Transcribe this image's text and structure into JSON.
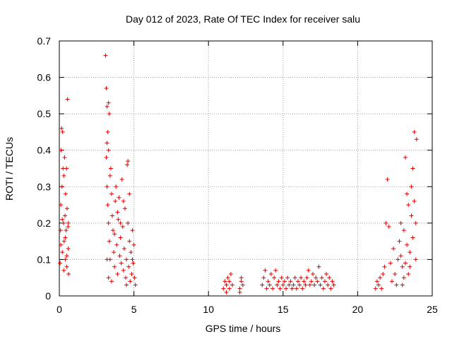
{
  "chart_data": {
    "type": "scatter",
    "title": "Day 012 of 2023, Rate Of TEC Index for receiver salu",
    "xlabel": "GPS time / hours",
    "ylabel": "ROTI / TECUs",
    "xlim": [
      0,
      25
    ],
    "ylim": [
      0,
      0.7
    ],
    "xticks": [
      "0",
      "5",
      "10",
      "15",
      "20",
      "25"
    ],
    "yticks": [
      "0",
      "0.1",
      "0.2",
      "0.3",
      "0.4",
      "0.5",
      "0.6",
      "0.7"
    ],
    "grid": true,
    "marker": "+",
    "color": "#e00000",
    "series": [
      {
        "points": [
          [
            0.05,
            0.09
          ],
          [
            0.08,
            0.18
          ],
          [
            0.1,
            0.25
          ],
          [
            0.12,
            0.4
          ],
          [
            0.15,
            0.46
          ],
          [
            0.18,
            0.3
          ],
          [
            0.2,
            0.12
          ],
          [
            0.22,
            0.45
          ],
          [
            0.25,
            0.35
          ],
          [
            0.28,
            0.2
          ],
          [
            0.3,
            0.07
          ],
          [
            0.32,
            0.15
          ],
          [
            0.35,
            0.38
          ],
          [
            0.38,
            0.22
          ],
          [
            0.4,
            0.1
          ],
          [
            0.42,
            0.28
          ],
          [
            0.45,
            0.18
          ],
          [
            0.48,
            0.35
          ],
          [
            0.5,
            0.08
          ],
          [
            0.52,
            0.24
          ],
          [
            0.55,
            0.54
          ],
          [
            0.58,
            0.19
          ],
          [
            0.6,
            0.13
          ],
          [
            0.62,
            0.06
          ],
          [
            0.1,
            0.14
          ],
          [
            0.2,
            0.21
          ],
          [
            0.3,
            0.33
          ],
          [
            0.4,
            0.16
          ],
          [
            0.5,
            0.11
          ],
          [
            0.6,
            0.2
          ],
          [
            3.1,
            0.66
          ],
          [
            3.15,
            0.57
          ],
          [
            3.2,
            0.52
          ],
          [
            3.25,
            0.45
          ],
          [
            3.3,
            0.53
          ],
          [
            3.35,
            0.5
          ],
          [
            3.15,
            0.38
          ],
          [
            3.2,
            0.3
          ],
          [
            3.25,
            0.25
          ],
          [
            3.3,
            0.2
          ],
          [
            3.35,
            0.15
          ],
          [
            3.4,
            0.1
          ],
          [
            3.45,
            0.35
          ],
          [
            3.5,
            0.28
          ],
          [
            3.55,
            0.22
          ],
          [
            3.6,
            0.18
          ],
          [
            3.65,
            0.12
          ],
          [
            3.7,
            0.08
          ],
          [
            3.75,
            0.26
          ],
          [
            3.8,
            0.3
          ],
          [
            3.85,
            0.14
          ],
          [
            3.9,
            0.06
          ],
          [
            3.95,
            0.21
          ],
          [
            4.0,
            0.27
          ],
          [
            4.05,
            0.11
          ],
          [
            4.1,
            0.16
          ],
          [
            4.15,
            0.09
          ],
          [
            4.2,
            0.32
          ],
          [
            4.25,
            0.19
          ],
          [
            4.3,
            0.07
          ],
          [
            4.35,
            0.13
          ],
          [
            4.4,
            0.24
          ],
          [
            4.45,
            0.05
          ],
          [
            4.5,
            0.1
          ],
          [
            4.55,
            0.36
          ],
          [
            4.6,
            0.2
          ],
          [
            4.65,
            0.08
          ],
          [
            4.7,
            0.15
          ],
          [
            4.75,
            0.04
          ],
          [
            4.8,
            0.12
          ],
          [
            4.85,
            0.06
          ],
          [
            4.9,
            0.18
          ],
          [
            4.95,
            0.09
          ],
          [
            5.0,
            0.14
          ],
          [
            5.05,
            0.05
          ],
          [
            5.1,
            0.03
          ],
          [
            3.2,
            0.42
          ],
          [
            3.3,
            0.4
          ],
          [
            3.4,
            0.33
          ],
          [
            4.6,
            0.37
          ],
          [
            3.2,
            0.1
          ],
          [
            3.3,
            0.05
          ],
          [
            3.5,
            0.04
          ],
          [
            3.7,
            0.17
          ],
          [
            3.9,
            0.23
          ],
          [
            4.1,
            0.2
          ],
          [
            4.3,
            0.26
          ],
          [
            4.5,
            0.03
          ],
          [
            4.7,
            0.28
          ],
          [
            4.9,
            0.1
          ],
          [
            11.0,
            0.02
          ],
          [
            11.1,
            0.04
          ],
          [
            11.2,
            0.03
          ],
          [
            11.3,
            0.05
          ],
          [
            11.4,
            0.02
          ],
          [
            11.5,
            0.06
          ],
          [
            11.6,
            0.03
          ],
          [
            11.2,
            0.01
          ],
          [
            11.4,
            0.04
          ],
          [
            12.1,
            0.02
          ],
          [
            12.2,
            0.04
          ],
          [
            12.3,
            0.03
          ],
          [
            12.2,
            0.05
          ],
          [
            12.1,
            0.01
          ],
          [
            13.6,
            0.03
          ],
          [
            13.7,
            0.05
          ],
          [
            13.8,
            0.07
          ],
          [
            13.9,
            0.02
          ],
          [
            14.0,
            0.04
          ],
          [
            14.1,
            0.03
          ],
          [
            14.2,
            0.06
          ],
          [
            14.3,
            0.02
          ],
          [
            14.4,
            0.05
          ],
          [
            14.5,
            0.07
          ],
          [
            14.6,
            0.03
          ],
          [
            14.7,
            0.04
          ],
          [
            14.8,
            0.02
          ],
          [
            14.9,
            0.05
          ],
          [
            15.0,
            0.03
          ],
          [
            15.1,
            0.04
          ],
          [
            15.2,
            0.02
          ],
          [
            15.3,
            0.05
          ],
          [
            15.4,
            0.03
          ],
          [
            15.5,
            0.04
          ],
          [
            15.6,
            0.02
          ],
          [
            15.7,
            0.03
          ],
          [
            15.8,
            0.05
          ],
          [
            15.9,
            0.02
          ],
          [
            16.0,
            0.04
          ],
          [
            16.1,
            0.03
          ],
          [
            16.2,
            0.05
          ],
          [
            16.3,
            0.02
          ],
          [
            16.4,
            0.04
          ],
          [
            16.5,
            0.03
          ],
          [
            16.6,
            0.05
          ],
          [
            16.7,
            0.07
          ],
          [
            16.8,
            0.03
          ],
          [
            16.9,
            0.04
          ],
          [
            17.0,
            0.06
          ],
          [
            17.1,
            0.03
          ],
          [
            17.2,
            0.05
          ],
          [
            17.3,
            0.04
          ],
          [
            17.4,
            0.08
          ],
          [
            17.5,
            0.03
          ],
          [
            17.6,
            0.05
          ],
          [
            17.7,
            0.02
          ],
          [
            17.8,
            0.04
          ],
          [
            17.9,
            0.06
          ],
          [
            18.0,
            0.03
          ],
          [
            18.1,
            0.05
          ],
          [
            18.2,
            0.02
          ],
          [
            18.3,
            0.04
          ],
          [
            18.4,
            0.03
          ],
          [
            21.2,
            0.02
          ],
          [
            21.3,
            0.04
          ],
          [
            21.4,
            0.03
          ],
          [
            21.5,
            0.05
          ],
          [
            21.6,
            0.02
          ],
          [
            21.7,
            0.06
          ],
          [
            21.8,
            0.08
          ],
          [
            21.9,
            0.2
          ],
          [
            22.0,
            0.32
          ],
          [
            22.1,
            0.19
          ],
          [
            22.2,
            0.09
          ],
          [
            22.3,
            0.04
          ],
          [
            22.4,
            0.13
          ],
          [
            22.5,
            0.06
          ],
          [
            22.6,
            0.03
          ],
          [
            22.7,
            0.1
          ],
          [
            22.8,
            0.15
          ],
          [
            22.9,
            0.2
          ],
          [
            23.0,
            0.08
          ],
          [
            23.1,
            0.18
          ],
          [
            23.2,
            0.38
          ],
          [
            23.3,
            0.28
          ],
          [
            23.4,
            0.25
          ],
          [
            23.5,
            0.12
          ],
          [
            23.6,
            0.3
          ],
          [
            23.7,
            0.35
          ],
          [
            23.8,
            0.45
          ],
          [
            23.9,
            0.2
          ],
          [
            23.95,
            0.43
          ],
          [
            23.5,
            0.08
          ],
          [
            23.3,
            0.14
          ],
          [
            23.1,
            0.05
          ],
          [
            22.9,
            0.11
          ],
          [
            23.7,
            0.16
          ],
          [
            23.9,
            0.1
          ],
          [
            23.6,
            0.22
          ],
          [
            23.4,
            0.06
          ],
          [
            23.8,
            0.26
          ],
          [
            23.2,
            0.09
          ],
          [
            23.0,
            0.03
          ]
        ]
      }
    ]
  }
}
